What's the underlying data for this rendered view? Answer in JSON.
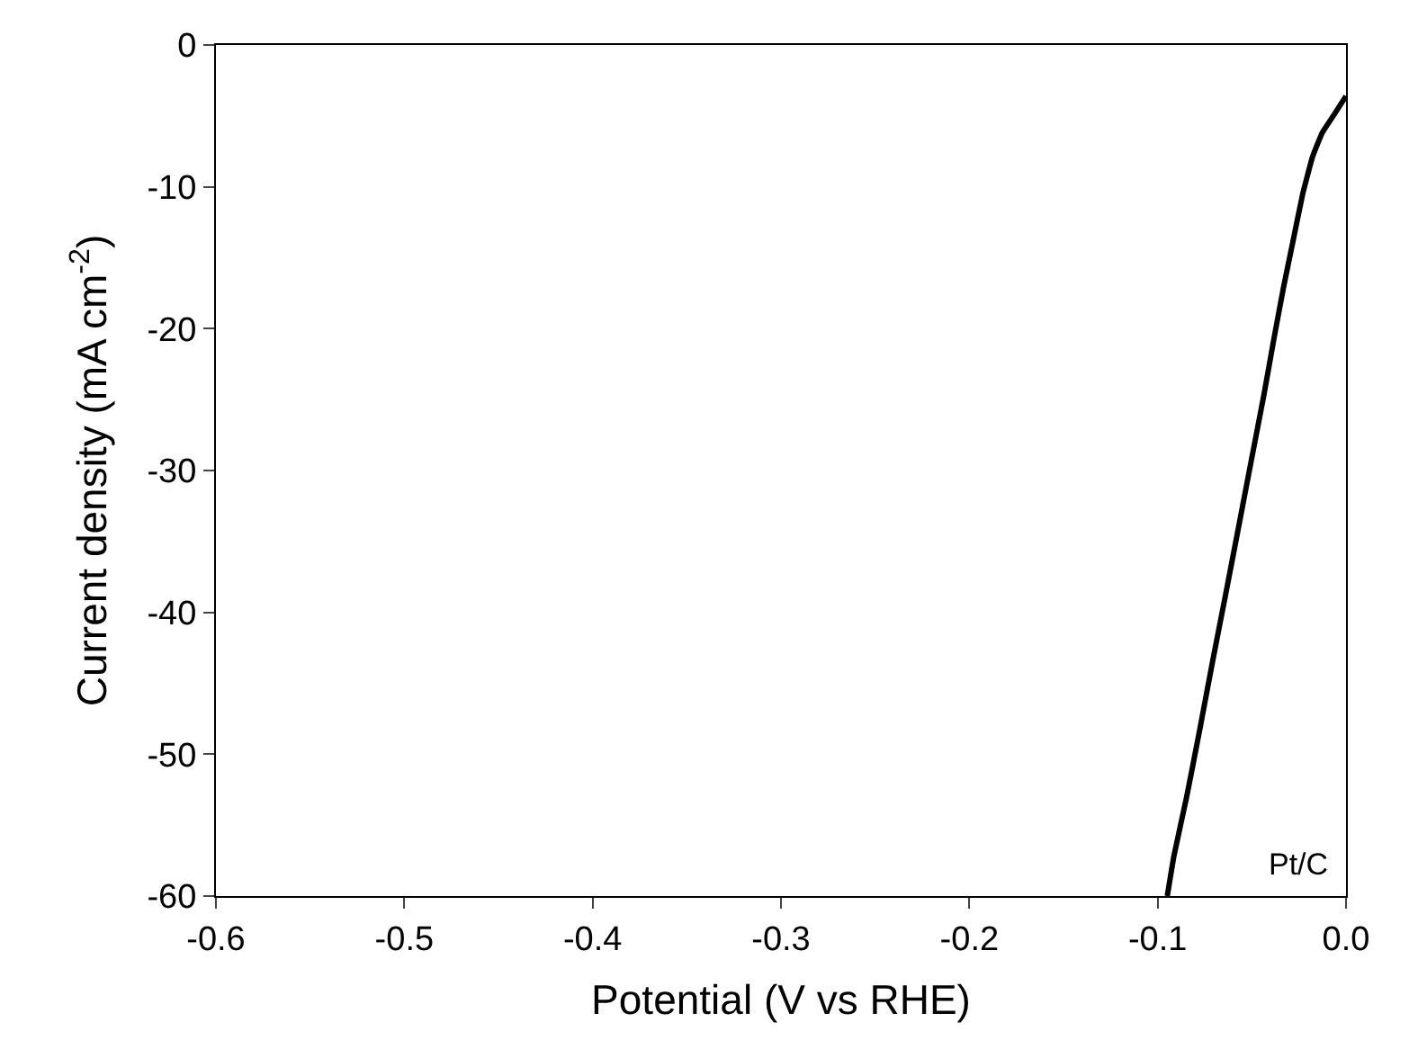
{
  "chart_data": {
    "type": "line",
    "xlabel": "Potential (V vs RHE)",
    "ylabel": "Current density (mA cm$^{-2}$)",
    "x": [
      -0.0949,
      -0.0914,
      -0.0846,
      -0.0777,
      -0.0709,
      -0.064,
      -0.0572,
      -0.0503,
      -0.0435,
      -0.0384,
      -0.0332,
      -0.0281,
      -0.023,
      -0.0178,
      -0.0127,
      -0.0058,
      0.0
    ],
    "series": [
      {
        "name": "Pt/C",
        "color": "#000000",
        "values": [
          -60,
          -57.2,
          -53.0,
          -48.3,
          -43.5,
          -38.8,
          -34.1,
          -29.3,
          -24.6,
          -20.8,
          -17.1,
          -13.8,
          -10.5,
          -7.9,
          -6.2,
          -4.8,
          -3.6
        ]
      }
    ],
    "xlim": [
      -0.6,
      0.0
    ],
    "xticks": [
      -0.6,
      -0.5,
      -0.4,
      -0.3,
      -0.2,
      -0.1,
      {
        "value": 0.0,
        "label": "0.0"
      }
    ],
    "ylim": [
      -60,
      0
    ],
    "yticks": [
      -60,
      -50,
      -40,
      -30,
      -20,
      -10,
      0
    ],
    "legend": false,
    "marker": "none",
    "line_style": "solid"
  }
}
